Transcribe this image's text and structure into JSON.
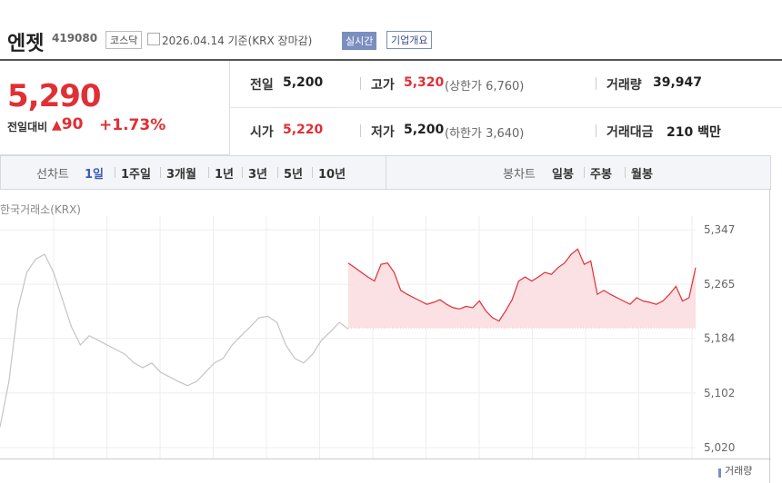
{
  "header": {
    "name": "엔젯",
    "code": "419080",
    "market": "코스닥",
    "date": "2026.04.14 기준(KRX 장마감)",
    "realtime": "실시간",
    "overview": "기업개요"
  },
  "quote": {
    "price": "5,290",
    "change_label": "전일대비",
    "change": "90",
    "change_pct": "+1.73%"
  },
  "stats": [
    {
      "label": "전일",
      "value": "5,200"
    },
    {
      "label": "고가",
      "value": "5,320",
      "extra": "(상한가 6,760)"
    },
    {
      "label": "거래량",
      "value": "39,947"
    },
    {
      "label": "시가",
      "value": "5,220"
    },
    {
      "label": "저가",
      "value": "5,200",
      "extra": "(하한가 3,640)"
    },
    {
      "label": "거래대금",
      "value": "210 백만"
    }
  ],
  "tabs": {
    "line_label": "선차트",
    "line_items": [
      "1일",
      "1주일",
      "3개월",
      "1년",
      "3년",
      "5년",
      "10년"
    ],
    "candle_label": "봉차트",
    "candle_items": [
      "일봉",
      "주봉",
      "월봉"
    ]
  },
  "chart_data": {
    "type": "line",
    "source": "한국거래소(KRX)",
    "volume_label": "거래량",
    "ylim": [
      5020,
      5347
    ],
    "baseline": 5200,
    "yticks": [
      {
        "value": 5347,
        "label": "5,347"
      },
      {
        "value": 5265,
        "label": "5,265"
      },
      {
        "value": 5184,
        "label": "5,184"
      },
      {
        "value": 5102,
        "label": "5,102"
      },
      {
        "value": 5020,
        "label": "5,020"
      }
    ],
    "series": [
      {
        "color": "#c4c4c4",
        "values": [
          5051,
          5119,
          5228,
          5283,
          5303,
          5310,
          5283,
          5242,
          5201,
          5174,
          5188,
          5181,
          5174,
          5167,
          5160,
          5147,
          5140,
          5147,
          5133,
          5126,
          5119,
          5113,
          5119,
          5133,
          5147,
          5154,
          5174,
          5188,
          5201,
          5215,
          5217,
          5208,
          5174,
          5154,
          5147,
          5160,
          5181,
          5194,
          5208,
          5198
        ]
      },
      {
        "color": "#e02f35",
        "fill": "#fbe1e3",
        "values": [
          5297,
          5290,
          5283,
          5276,
          5270,
          5295,
          5297,
          5283,
          5256,
          5250,
          5245,
          5240,
          5235,
          5238,
          5242,
          5235,
          5230,
          5228,
          5232,
          5230,
          5240,
          5225,
          5215,
          5210,
          5225,
          5242,
          5270,
          5276,
          5270,
          5276,
          5283,
          5280,
          5290,
          5297,
          5310,
          5318,
          5295,
          5300,
          5250,
          5256,
          5250,
          5245,
          5240,
          5235,
          5245,
          5240,
          5238,
          5235,
          5240,
          5250,
          5262,
          5240,
          5245,
          5290
        ]
      }
    ]
  }
}
